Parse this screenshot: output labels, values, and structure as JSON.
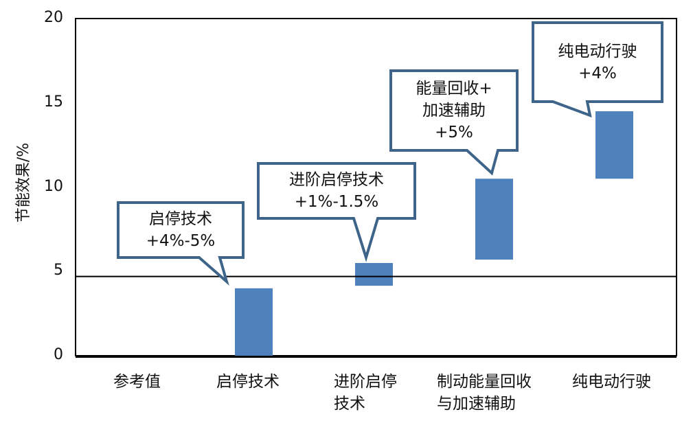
{
  "chart_data": {
    "type": "bar",
    "subtype": "floating-range (waterfall-style)",
    "title": "",
    "xlabel": "",
    "ylabel": "节能效果/%",
    "ylim": [
      0,
      20
    ],
    "yticks": [
      "0",
      "5",
      "10",
      "15",
      "20"
    ],
    "grid": false,
    "legend": null,
    "categories": [
      "参考值",
      "启停技术",
      "进阶启停\n技术",
      "制动能量回收\n与加速辅助",
      "纯电动行驶"
    ],
    "series": [
      {
        "name": "节能效果",
        "color": "#4f81bd",
        "ranges": [
          null,
          [
            0,
            4.0
          ],
          [
            4.15,
            5.5
          ],
          [
            5.7,
            10.5
          ],
          [
            10.5,
            14.5
          ]
        ]
      }
    ],
    "reference_line": {
      "y": 4.7,
      "color": "#000000"
    },
    "annotations": [
      {
        "target": "启停技术",
        "text": "启停技术\n+4%-5%"
      },
      {
        "target": "进阶启停技术",
        "text": "进阶启停技术\n+1%-1.5%"
      },
      {
        "target": "制动能量回收与加速辅助",
        "text": "能量回收+\n加速辅助\n+5%"
      },
      {
        "target": "纯电动行驶",
        "text": "纯电动行驶\n+4%"
      }
    ]
  },
  "colors": {
    "bar": "#4f81bd",
    "callout_border": "#3e6589",
    "axis": "#000000"
  }
}
